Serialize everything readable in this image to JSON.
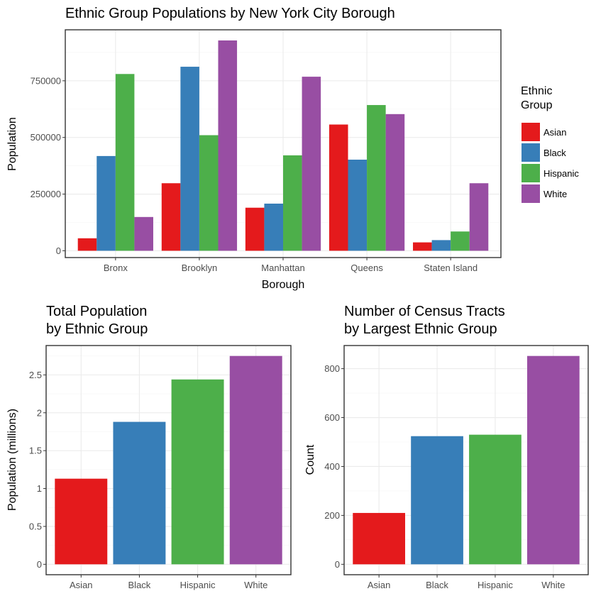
{
  "colors": {
    "Asian": "#E41A1C",
    "Black": "#377EB8",
    "Hispanic": "#4DAF4A",
    "White": "#984EA3"
  },
  "legend": {
    "title_line1": "Ethnic",
    "title_line2": "Group",
    "items": [
      "Asian",
      "Black",
      "Hispanic",
      "White"
    ]
  },
  "chart_data": [
    {
      "type": "bar",
      "title": "Ethnic Group Populations by New York City Borough",
      "xlabel": "Borough",
      "ylabel": "Population",
      "categories": [
        "Bronx",
        "Brooklyn",
        "Manhattan",
        "Queens",
        "Staten Island"
      ],
      "series": [
        {
          "name": "Asian",
          "values": [
            55000,
            298000,
            190000,
            557000,
            37000
          ]
        },
        {
          "name": "Black",
          "values": [
            418000,
            812000,
            208000,
            402000,
            47000
          ]
        },
        {
          "name": "Hispanic",
          "values": [
            780000,
            510000,
            421000,
            643000,
            85000
          ]
        },
        {
          "name": "White",
          "values": [
            149000,
            928000,
            768000,
            603000,
            298000
          ]
        }
      ],
      "ylim": [
        -30000,
        975000
      ],
      "yticks": [
        0,
        250000,
        500000,
        750000
      ],
      "ytick_labels": [
        "0",
        "250000",
        "500000",
        "750000"
      ],
      "legend_position": "right"
    },
    {
      "type": "bar",
      "title_line1": "Total Population",
      "title_line2": "by Ethnic Group",
      "xlabel": "",
      "ylabel": "Population (millions)",
      "categories": [
        "Asian",
        "Black",
        "Hispanic",
        "White"
      ],
      "values": [
        1.13,
        1.88,
        2.44,
        2.75
      ],
      "ylim": [
        -0.1375,
        2.8875
      ],
      "yticks": [
        0,
        0.5,
        1,
        1.5,
        2,
        2.5
      ],
      "ytick_labels": [
        "0",
        "0.5",
        "1",
        "1.5",
        "2",
        "2.5"
      ]
    },
    {
      "type": "bar",
      "title_line1": "Number of Census Tracts",
      "title_line2": "by Largest Ethnic Group",
      "xlabel": "",
      "ylabel": "Count",
      "categories": [
        "Asian",
        "Black",
        "Hispanic",
        "White"
      ],
      "values": [
        210,
        524,
        530,
        852
      ],
      "ylim": [
        -42.6,
        894.6
      ],
      "yticks": [
        0,
        200,
        400,
        600,
        800
      ],
      "ytick_labels": [
        "0",
        "200",
        "400",
        "600",
        "800"
      ]
    }
  ]
}
